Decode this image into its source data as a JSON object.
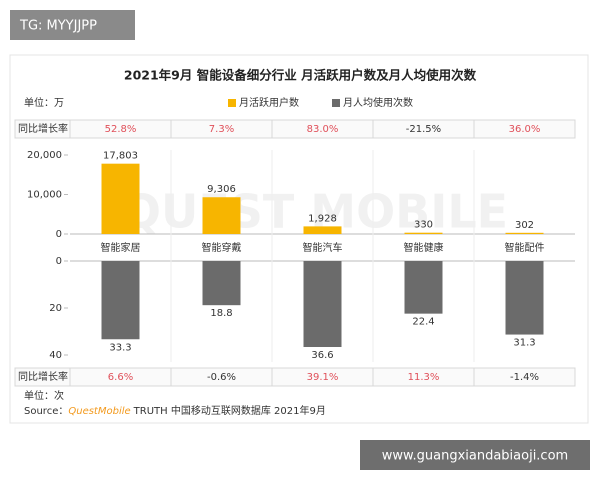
{
  "watermarks": [
    "TG: MYYJJPP",
    "www.guangxiandabiaoji.com"
  ],
  "chart_data": {
    "type": "bar",
    "title": "2021年9月 智能设备细分行业 月活跃用户数及月人均使用次数",
    "background_watermark": "QUEST MOBILE",
    "unit_label_top": "单位：万",
    "unit_label_bottom": "单位：次",
    "growth_label": "同比增长率",
    "categories": [
      "智能家居",
      "智能穿戴",
      "智能汽车",
      "智能健康",
      "智能配件"
    ],
    "series": [
      {
        "name": "月活跃用户数",
        "color": "#f7b500",
        "values": [
          17803,
          9306,
          1928,
          330,
          302
        ],
        "value_labels": [
          "17,803",
          "9,306",
          "1,928",
          "330",
          "302"
        ],
        "growth": {
          "values": [
            52.8,
            7.3,
            83.0,
            -21.5,
            36.0
          ],
          "value_labels": [
            "52.8%",
            "7.3%",
            "83.0%",
            "-21.5%",
            "36.0%"
          ]
        }
      },
      {
        "name": "月人均使用次数",
        "color": "#6b6b6b",
        "axis": "y2",
        "values": [
          33.3,
          18.8,
          36.6,
          22.4,
          31.3
        ],
        "growth": {
          "values": [
            6.6,
            -0.6,
            39.1,
            11.3,
            -1.4
          ],
          "value_labels": [
            "6.6%",
            "-0.6%",
            "39.1%",
            "11.3%",
            "-1.4%"
          ]
        }
      }
    ],
    "ylim": [
      0,
      20000
    ],
    "yticks": [
      0,
      {
        "value": 10000,
        "label": "10,000"
      },
      {
        "value": 20000,
        "label": "20,000"
      }
    ],
    "y2lim": [
      0,
      40
    ],
    "y2ticks": [
      0,
      20,
      40
    ],
    "y2_inverted": true,
    "source_prefix": "Source：",
    "source_brand": "QuestMobile",
    "source_rest": "TRUTH 中国移动互联网数据库 2021年9月"
  }
}
